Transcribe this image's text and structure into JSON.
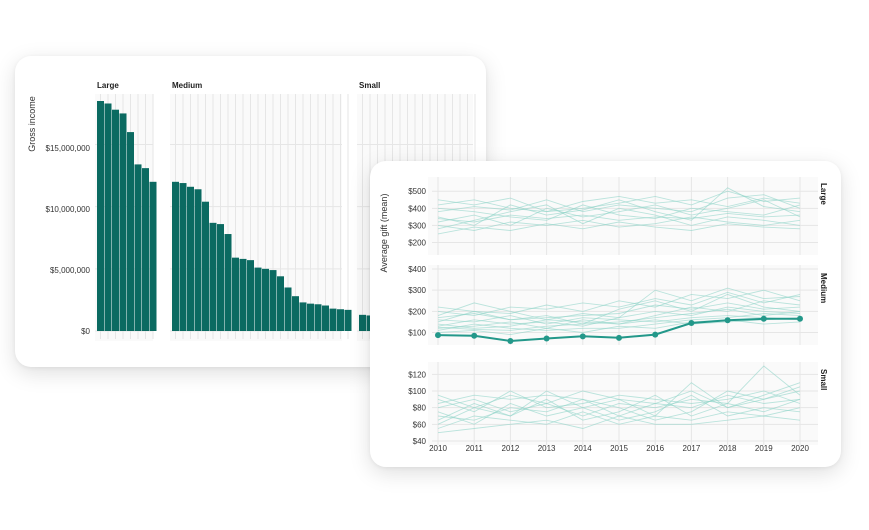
{
  "colors": {
    "bar": "#0b6a61",
    "line_bg": "#8fd3c8",
    "highlight": "#23988a",
    "grid": "#e6e6e6",
    "panel": "#fafafa"
  },
  "chart_data": [
    {
      "type": "bar",
      "title": "",
      "xlabel": "",
      "ylabel": "Gross income",
      "ylim": [
        0,
        18500000
      ],
      "yticks": [
        0,
        5000000,
        10000000,
        15000000
      ],
      "ytick_labels": [
        "$0",
        "$5,000,000",
        "$10,000,000",
        "$15,000,000"
      ],
      "facets": [
        {
          "label": "Large",
          "values": [
            18500000,
            18300000,
            17800000,
            17500000,
            16000000,
            13400000,
            13100000,
            12000000
          ]
        },
        {
          "label": "Medium",
          "values": [
            12000000,
            11900000,
            11600000,
            11400000,
            10400000,
            8700000,
            8600000,
            7800000,
            5900000,
            5800000,
            5700000,
            5100000,
            5000000,
            4900000,
            4400000,
            3500000,
            2800000,
            2300000,
            2200000,
            2150000,
            2050000,
            1800000,
            1750000,
            1700000
          ]
        },
        {
          "label": "Small",
          "values": [
            1300000,
            1250000
          ]
        }
      ]
    },
    {
      "type": "line",
      "title": "",
      "xlabel": "",
      "ylabel": "Average gift (mean)",
      "x": [
        2010,
        2011,
        2012,
        2013,
        2014,
        2015,
        2016,
        2017,
        2018,
        2019,
        2020
      ],
      "facets": [
        {
          "label": "Large",
          "ylim": [
            150,
            560
          ],
          "yticks": [
            200,
            300,
            400,
            500
          ],
          "ytick_labels": [
            "$200",
            "$300",
            "$400",
            "$500"
          ],
          "series": [
            {
              "name": "s1",
              "values": [
                350,
                300,
                420,
                360,
                390,
                450,
                380,
                330,
                520,
                410,
                380
              ]
            },
            {
              "name": "s2",
              "values": [
                320,
                360,
                300,
                400,
                350,
                380,
                420,
                360,
                400,
                450,
                350
              ]
            },
            {
              "name": "s3",
              "values": [
                400,
                380,
                350,
                330,
                420,
                360,
                340,
                400,
                380,
                360,
                420
              ]
            },
            {
              "name": "s4",
              "values": [
                280,
                330,
                380,
                420,
                310,
                400,
                360,
                300,
                350,
                330,
                300
              ]
            },
            {
              "name": "s5",
              "values": [
                450,
                420,
                460,
                380,
                400,
                430,
                470,
                420,
                500,
                440,
                460
              ]
            },
            {
              "name": "s6",
              "values": [
                300,
                270,
                320,
                300,
                330,
                290,
                310,
                350,
                320,
                300,
                330
              ]
            },
            {
              "name": "s7",
              "values": [
                380,
                410,
                390,
                450,
                380,
                420,
                400,
                380,
                460,
                480,
                400
              ]
            },
            {
              "name": "s8",
              "values": [
                340,
                320,
                360,
                340,
                360,
                330,
                350,
                340,
                370,
                350,
                360
              ]
            },
            {
              "name": "s9",
              "values": [
                420,
                450,
                400,
                380,
                440,
                470,
                430,
                450,
                410,
                460,
                430
              ]
            },
            {
              "name": "s10",
              "values": [
                250,
                290,
                270,
                310,
                280,
                320,
                290,
                270,
                310,
                290,
                280
              ]
            }
          ]
        },
        {
          "label": "Medium",
          "ylim": [
            60,
            400
          ],
          "yticks": [
            100,
            200,
            300,
            400
          ],
          "ytick_labels": [
            "$100",
            "$200",
            "$300",
            "$400"
          ],
          "highlight": {
            "name": "highlight",
            "values": [
              88,
              85,
              60,
              72,
              82,
              75,
              90,
              145,
              158,
              165,
              165
            ]
          },
          "series": [
            {
              "name": "m1",
              "values": [
                150,
                200,
                160,
                180,
                140,
                210,
                250,
                200,
                280,
                220,
                200
              ]
            },
            {
              "name": "m2",
              "values": [
                120,
                130,
                150,
                120,
                160,
                140,
                180,
                220,
                200,
                250,
                230
              ]
            },
            {
              "name": "m3",
              "values": [
                180,
                240,
                200,
                160,
                190,
                170,
                300,
                250,
                310,
                260,
                270
              ]
            },
            {
              "name": "m4",
              "values": [
                100,
                110,
                90,
                120,
                100,
                130,
                120,
                150,
                160,
                140,
                150
              ]
            },
            {
              "name": "m5",
              "values": [
                200,
                180,
                220,
                210,
                240,
                220,
                260,
                230,
                290,
                240,
                280
              ]
            },
            {
              "name": "m6",
              "values": [
                130,
                160,
                140,
                150,
                130,
                170,
                200,
                180,
                220,
                200,
                190
              ]
            },
            {
              "name": "m7",
              "values": [
                160,
                150,
                180,
                140,
                170,
                160,
                150,
                170,
                180,
                170,
                160
              ]
            },
            {
              "name": "m8",
              "values": [
                110,
                140,
                120,
                110,
                120,
                120,
                140,
                160,
                170,
                190,
                180
              ]
            },
            {
              "name": "m9",
              "values": [
                220,
                200,
                190,
                230,
                200,
                250,
                220,
                280,
                260,
                300,
                250
              ]
            },
            {
              "name": "m10",
              "values": [
                140,
                120,
                130,
                160,
                150,
                140,
                160,
                140,
                150,
                160,
                170
              ]
            },
            {
              "name": "m11",
              "values": [
                170,
                190,
                160,
                170,
                180,
                190,
                230,
                210,
                240,
                210,
                220
              ]
            },
            {
              "name": "m12",
              "values": [
                125,
                115,
                110,
                130,
                140,
                150,
                170,
                190,
                210,
                180,
                200
              ]
            }
          ]
        },
        {
          "label": "Small",
          "ylim": [
            40,
            130
          ],
          "yticks": [
            40,
            60,
            80,
            100,
            120
          ],
          "ytick_labels": [
            "$40",
            "$60",
            "$80",
            "$100",
            "$120"
          ],
          "series": [
            {
              "name": "t1",
              "values": [
                60,
                80,
                70,
                100,
                80,
                90,
                70,
                110,
                80,
                90,
                100
              ]
            },
            {
              "name": "t2",
              "values": [
                70,
                65,
                80,
                75,
                90,
                70,
                85,
                80,
                95,
                85,
                90
              ]
            },
            {
              "name": "t3",
              "values": [
                80,
                90,
                75,
                85,
                70,
                85,
                80,
                90,
                85,
                130,
                95
              ]
            },
            {
              "name": "t4",
              "values": [
                55,
                70,
                65,
                60,
                75,
                60,
                70,
                65,
                75,
                70,
                80
              ]
            },
            {
              "name": "t5",
              "values": [
                90,
                75,
                100,
                80,
                85,
                95,
                90,
                85,
                90,
                100,
                85
              ]
            },
            {
              "name": "t6",
              "values": [
                65,
                85,
                70,
                90,
                65,
                75,
                95,
                70,
                85,
                75,
                90
              ]
            },
            {
              "name": "t7",
              "values": [
                75,
                60,
                85,
                70,
                80,
                65,
                75,
                95,
                70,
                80,
                75
              ]
            },
            {
              "name": "t8",
              "values": [
                85,
                95,
                90,
                95,
                90,
                80,
                65,
                75,
                100,
                90,
                105
              ]
            },
            {
              "name": "t9",
              "values": [
                50,
                55,
                60,
                65,
                55,
                70,
                60,
                60,
                65,
                70,
                65
              ]
            },
            {
              "name": "t10",
              "values": [
                95,
                80,
                95,
                85,
                100,
                90,
                85,
                100,
                80,
                95,
                110
              ]
            }
          ]
        }
      ]
    }
  ]
}
